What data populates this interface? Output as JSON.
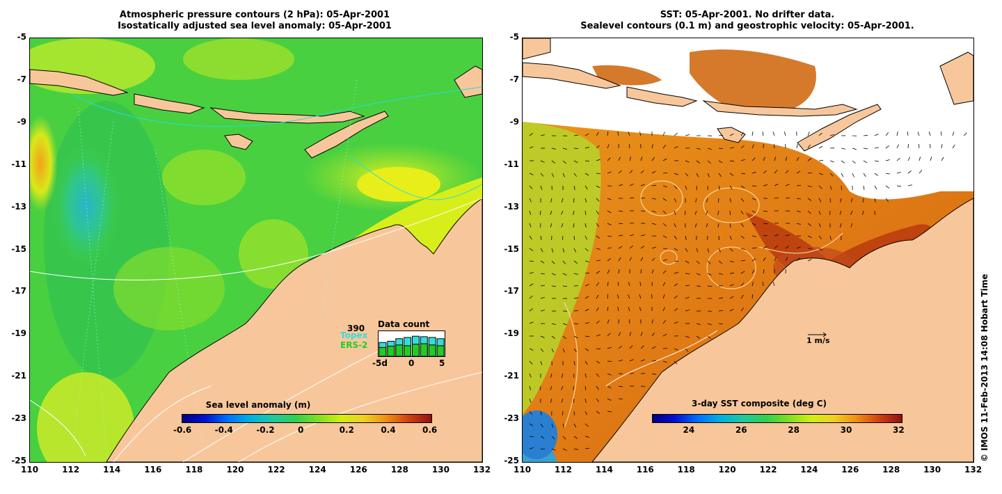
{
  "left_panel": {
    "title_line1": "Atmospheric pressure contours (2 hPa): 05-Apr-2001",
    "title_line2": "Isostatically adjusted sea level anomaly: 05-Apr-2001",
    "x_ticks": [
      "110",
      "112",
      "114",
      "116",
      "118",
      "120",
      "122",
      "124",
      "126",
      "128",
      "130",
      "132"
    ],
    "y_ticks": [
      "-5",
      "-7",
      "-9",
      "-11",
      "-13",
      "-15",
      "-17",
      "-19",
      "-21",
      "-23",
      "-25"
    ],
    "colorbar": {
      "label": "Sea level anomaly (m)",
      "ticks": [
        "-0.6",
        "-0.4",
        "-0.2",
        "0",
        "0.2",
        "0.4",
        "0.6"
      ],
      "range": [
        -0.6,
        0.6
      ]
    },
    "data_count": {
      "title": "Data count",
      "max_value": "390",
      "series": [
        {
          "name": "Topex",
          "color": "#33dddd"
        },
        {
          "name": "ERS-2",
          "color": "#22cc22"
        }
      ],
      "x_ticks": [
        "-5d",
        "0",
        "5"
      ],
      "topex_values": [
        0.55,
        0.6,
        0.7,
        0.75,
        0.8,
        0.78,
        0.75,
        0.7
      ],
      "ers_values": [
        0.35,
        0.4,
        0.45,
        0.42,
        0.48,
        0.5,
        0.45,
        0.42
      ]
    }
  },
  "right_panel": {
    "title_line1": "SST: 05-Apr-2001. No drifter data.",
    "title_line2": "Sealevel contours (0.1 m) and geostrophic velocity: 05-Apr-2001.",
    "x_ticks": [
      "110",
      "112",
      "114",
      "116",
      "118",
      "120",
      "122",
      "124",
      "126",
      "128",
      "130",
      "132"
    ],
    "y_ticks": [
      "-5",
      "-7",
      "-9",
      "-11",
      "-13",
      "-15",
      "-17",
      "-19",
      "-21",
      "-23",
      "-25"
    ],
    "colorbar": {
      "label": "3-day SST composite (deg C)",
      "ticks": [
        "24",
        "26",
        "28",
        "30",
        "32"
      ],
      "range": [
        22.5,
        32
      ]
    },
    "velocity_scale_label": "1 m/s"
  },
  "credit": "© IMOS 11-Feb-2013 14:08 Hobart Time",
  "colors": {
    "land": "#f7c79b",
    "sla_low": "#1aa9a0",
    "sla_mid": "#3fcf3f",
    "sla_high": "#d9f21a",
    "sst_warm": "#e07a10",
    "sst_hot": "#b83a0e",
    "sst_cool": "#7fcf30"
  }
}
